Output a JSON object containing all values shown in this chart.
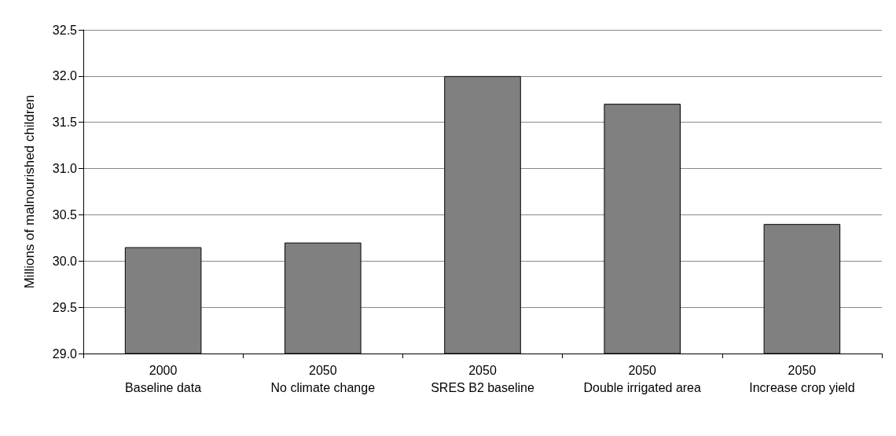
{
  "chart_data": {
    "type": "bar",
    "ylabel": "Millions of malnourished children",
    "categories": [
      "2000\nBaseline data",
      "2050\nNo climate change",
      "2050\nSRES B2 baseline",
      "2050\nDouble irrigated area",
      "2050\nIncrease crop yield"
    ],
    "values": [
      30.15,
      30.2,
      32.0,
      31.7,
      30.4
    ],
    "color": "#808080",
    "ylim": [
      29.0,
      32.5
    ],
    "yticks": [
      {
        "value": 29.0,
        "label": "29.0"
      },
      {
        "value": 29.5,
        "label": "29.5"
      },
      {
        "value": 30.0,
        "label": "30.0"
      },
      {
        "value": 30.5,
        "label": "30.5"
      },
      {
        "value": 31.0,
        "label": "31.0"
      },
      {
        "value": 31.5,
        "label": "31.5"
      },
      {
        "value": 32.0,
        "label": "32.0"
      },
      {
        "value": 32.5,
        "label": "32.5"
      }
    ],
    "grid": "y"
  }
}
